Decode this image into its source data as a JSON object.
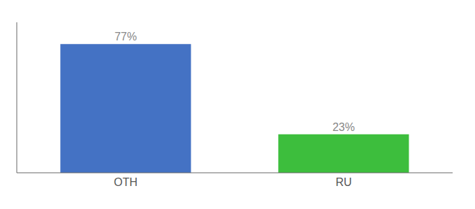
{
  "chart_data": {
    "type": "bar",
    "categories": [
      "OTH",
      "RU"
    ],
    "values": [
      77,
      23
    ],
    "value_labels": [
      "77%",
      "23%"
    ],
    "colors": [
      "#4472C4",
      "#3DBE3D"
    ],
    "ylim": [
      0,
      90
    ],
    "tick_labels": "x",
    "data_labels": true
  }
}
